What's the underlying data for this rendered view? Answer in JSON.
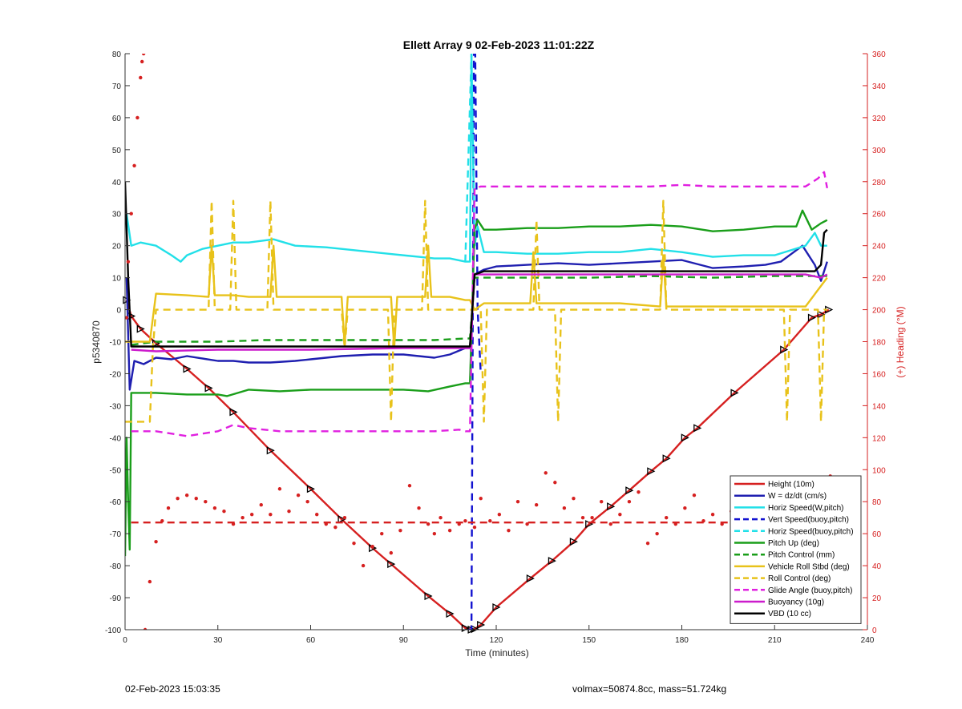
{
  "chart_data": {
    "type": "line",
    "title": "Ellett Array 9 02-Feb-2023 11:01:22Z",
    "xlabel": "Time (minutes)",
    "ylabel": "p5340870",
    "y2label": "(+) Heading (°M)",
    "xlim": [
      0,
      240
    ],
    "ylim": [
      -100,
      80
    ],
    "y2lim": [
      0,
      360
    ],
    "xticks": [
      0,
      30,
      60,
      90,
      120,
      150,
      180,
      210,
      240
    ],
    "yticks": [
      -100,
      -90,
      -80,
      -70,
      -60,
      -50,
      -40,
      -30,
      -20,
      -10,
      0,
      10,
      20,
      30,
      40,
      50,
      60,
      70,
      80
    ],
    "y2ticks": [
      0,
      20,
      40,
      60,
      80,
      100,
      120,
      140,
      160,
      180,
      200,
      220,
      240,
      260,
      280,
      300,
      320,
      340,
      360
    ],
    "grid": false,
    "legend_position": "bottom-right",
    "series": [
      {
        "name": "Height (10m)",
        "color": "#d62020",
        "style": "solid",
        "x": [
          0.5,
          2,
          5,
          10,
          20,
          27,
          35,
          47,
          60,
          70,
          80,
          86,
          98,
          105,
          110,
          112,
          113,
          115,
          120,
          131,
          138,
          145,
          150,
          157,
          163,
          170,
          175,
          181,
          185,
          197,
          213,
          222,
          225,
          227.5
        ],
        "y": [
          3,
          -2,
          -6,
          -10.5,
          -18.5,
          -24.5,
          -32,
          -44,
          -56,
          -65.5,
          -74.5,
          -79.5,
          -89.5,
          -95,
          -99.5,
          -100,
          -99.8,
          -98.5,
          -93,
          -84,
          -78.5,
          -72.5,
          -67,
          -61.5,
          -56.5,
          -50.5,
          -46.5,
          -40,
          -37,
          -26,
          -12.5,
          -2.5,
          -1.5,
          0
        ]
      },
      {
        "name": "W = dz/dt (cm/s)",
        "color": "#1f1fb0",
        "style": "solid",
        "x": [
          0.5,
          1.5,
          3,
          6,
          10,
          15,
          20,
          30,
          35,
          40,
          47,
          55,
          60,
          70,
          80,
          90,
          95,
          100,
          105,
          110,
          111.5,
          113,
          116,
          120,
          130,
          140,
          150,
          160,
          170,
          180,
          190,
          200,
          207,
          212,
          219,
          223,
          225,
          227
        ],
        "y": [
          10,
          -25,
          -16,
          -17,
          -15,
          -15.5,
          -14.5,
          -16,
          -16,
          -16.5,
          -16.5,
          -16,
          -15.5,
          -14.5,
          -14,
          -14,
          -14.5,
          -15,
          -14,
          -12,
          -12,
          11,
          12.5,
          13.5,
          14,
          14.5,
          14,
          14.5,
          15,
          15.5,
          13,
          13.5,
          14,
          15,
          20,
          14,
          9,
          15
        ]
      },
      {
        "name": "Horiz Speed(W,pitch)",
        "color": "#22e0e8",
        "style": "solid",
        "x": [
          0.5,
          2,
          5,
          10,
          15,
          18,
          20,
          25,
          30,
          35,
          40,
          48,
          55,
          65,
          75,
          85,
          95,
          100,
          105,
          110,
          111.5,
          112,
          113,
          114,
          116,
          120,
          130,
          140,
          150,
          160,
          170,
          180,
          190,
          200,
          210,
          220,
          223,
          225,
          227
        ],
        "y": [
          30,
          20,
          21,
          20,
          17,
          15,
          17,
          19,
          20,
          21,
          21,
          22,
          20,
          19.5,
          18.5,
          17.5,
          16.5,
          16,
          16,
          15,
          15,
          80,
          20,
          26,
          18,
          18,
          17.5,
          17.5,
          18,
          18,
          19,
          18,
          16.5,
          17,
          17,
          20,
          24,
          20,
          20
        ]
      },
      {
        "name": "Vert Speed(buoy,pitch)",
        "color": "#1212d0",
        "style": "dashed",
        "x": [
          111,
          112,
          112.8,
          113.2,
          114,
          115
        ],
        "y": [
          -100,
          -100,
          80,
          80,
          0,
          -20
        ]
      },
      {
        "name": "Horiz Speed(buoy,pitch)",
        "color": "#22e0e8",
        "style": "dashed",
        "x": [
          110,
          112,
          113
        ],
        "y": [
          15,
          80,
          20
        ]
      },
      {
        "name": "Pitch Up (deg)",
        "color": "#1a9e1a",
        "style": "solid",
        "x": [
          0,
          0.5,
          1,
          1.5,
          2,
          5,
          10,
          20,
          30,
          33,
          40,
          50,
          60,
          70,
          80,
          90,
          98,
          105,
          110,
          111.5,
          113,
          114,
          116,
          120,
          130,
          140,
          150,
          160,
          170,
          180,
          190,
          200,
          210,
          217,
          219,
          222,
          225,
          227
        ],
        "y": [
          -77,
          -40,
          -60,
          -75,
          -26,
          -26,
          -26,
          -26.5,
          -26.5,
          -27,
          -25,
          -25.5,
          -25,
          -25,
          -25,
          -25,
          -25.5,
          -24,
          -23,
          -23,
          25,
          28,
          25,
          25,
          25.5,
          25.5,
          26,
          26,
          26.5,
          26,
          24.5,
          25,
          26,
          26,
          31,
          25,
          27,
          28
        ]
      },
      {
        "name": "Pitch Control (mm)",
        "color": "#1a9e1a",
        "style": "dashed",
        "x": [
          2,
          10,
          30,
          45,
          60,
          80,
          100,
          110,
          111.5,
          113,
          116,
          130,
          150,
          170,
          190,
          210,
          227
        ],
        "y": [
          -11,
          -10,
          -10,
          -9.5,
          -9.5,
          -9.5,
          -9.5,
          -9,
          -9,
          10,
          10,
          10,
          10,
          10.5,
          10,
          10.5,
          10.5
        ]
      },
      {
        "name": "Vehicle Roll Stbd (deg)",
        "color": "#e8c21a",
        "style": "solid",
        "x": [
          0,
          2,
          5,
          8,
          10,
          20,
          27,
          28,
          29,
          35,
          40,
          47,
          48,
          49,
          60,
          70,
          71,
          72,
          80,
          86,
          87,
          88,
          97,
          98,
          99,
          105,
          110,
          111.5,
          113,
          116,
          120,
          131,
          132,
          133,
          140,
          150,
          160,
          173,
          174,
          175,
          180,
          190,
          200,
          220,
          227
        ],
        "y": [
          -10,
          -10,
          -10,
          -10,
          5,
          4.5,
          4,
          20,
          4.5,
          4.5,
          4,
          4,
          20,
          4,
          4,
          4,
          -11,
          4,
          4,
          4,
          -12,
          4,
          4,
          20,
          4,
          4,
          3,
          3,
          0,
          2,
          2,
          2,
          18,
          2,
          2,
          2,
          2,
          1,
          17,
          1,
          1,
          1,
          1,
          1,
          10
        ]
      },
      {
        "name": "Roll Control (deg)",
        "color": "#e8c21a",
        "style": "dashed",
        "x": [
          0,
          2,
          7,
          8,
          9,
          10,
          20,
          27,
          28,
          29,
          34,
          35,
          36,
          46,
          47,
          48,
          60,
          70,
          71,
          72,
          85,
          86,
          87,
          96,
          97,
          98,
          110,
          111.5,
          113,
          115,
          116,
          117,
          120,
          132,
          133,
          134,
          139,
          140,
          141,
          173,
          174,
          175,
          190,
          210,
          213,
          214,
          215,
          224,
          225,
          226,
          227
        ],
        "y": [
          -35,
          -35,
          -35,
          -35,
          -12,
          0,
          0,
          0,
          34,
          0,
          0,
          34,
          0,
          0,
          34,
          0,
          0,
          0,
          -12,
          0,
          0,
          -35,
          0,
          0,
          34,
          0,
          0,
          0,
          0,
          0,
          -35,
          0,
          0,
          0,
          28,
          0,
          0,
          -35,
          0,
          0,
          34,
          0,
          0,
          0,
          0,
          -35,
          0,
          0,
          -35,
          0,
          0
        ]
      },
      {
        "name": "Glide Angle (buoy,pitch)",
        "color": "#e020e0",
        "style": "dashed",
        "x": [
          2,
          10,
          20,
          30,
          35,
          40,
          50,
          60,
          70,
          80,
          90,
          100,
          108,
          110,
          111.5,
          113,
          115,
          120,
          140,
          160,
          170,
          180,
          190,
          200,
          210,
          220,
          224,
          226,
          227
        ],
        "y": [
          -38,
          -38,
          -39.5,
          -38,
          -36,
          -37,
          -38,
          -38,
          -38,
          -38,
          -38,
          -38,
          -37.5,
          -38,
          -38,
          38,
          38.5,
          38.5,
          38.5,
          38.5,
          38.5,
          39,
          38.5,
          38.5,
          38.5,
          38.5,
          41,
          43,
          38
        ]
      },
      {
        "name": "Buoyancy (10g)",
        "color": "#cc1ccc",
        "style": "solid",
        "x": [
          2,
          10,
          30,
          60,
          90,
          110,
          111.5,
          113,
          116,
          130,
          160,
          190,
          220,
          225,
          227
        ],
        "y": [
          -12.5,
          -13,
          -12.5,
          -12.5,
          -12,
          -12,
          -12,
          11,
          11,
          11,
          11,
          11,
          11,
          10,
          11
        ]
      },
      {
        "name": "VBD (10 cc)",
        "color": "#000000",
        "style": "solid",
        "x": [
          0,
          1,
          2,
          5,
          10,
          30,
          60,
          90,
          110,
          111.5,
          113,
          116,
          120,
          150,
          180,
          210,
          223,
          225,
          226,
          227
        ],
        "y": [
          40,
          10,
          -11.5,
          -11.5,
          -11.5,
          -11.5,
          -11.5,
          -11.5,
          -11.5,
          -11.5,
          11,
          12,
          12,
          12,
          12,
          12,
          12,
          14,
          24,
          25
        ]
      },
      {
        "name": "Heading (°M)",
        "color": "#d62020",
        "style": "dots",
        "axis": "right",
        "x": [
          0.5,
          1,
          2,
          3,
          4,
          5,
          5.5,
          6,
          6.5,
          8,
          10,
          12,
          14,
          17,
          20,
          23,
          26,
          29,
          32,
          35,
          38,
          41,
          44,
          47,
          50,
          53,
          56,
          59,
          62,
          65,
          68,
          71,
          74,
          77,
          80,
          83,
          86,
          89,
          92,
          95,
          98,
          100,
          102,
          105,
          108,
          110,
          113,
          115,
          118,
          121,
          124,
          127,
          130,
          133,
          136,
          139,
          142,
          145,
          148,
          151,
          154,
          157,
          160,
          163,
          166,
          169,
          172,
          175,
          178,
          181,
          184,
          187,
          190,
          193,
          196,
          199,
          202,
          205,
          208,
          211,
          214,
          217,
          220,
          223,
          226,
          228
        ],
        "y": [
          195,
          230,
          260,
          290,
          320,
          345,
          355,
          360,
          0,
          30,
          55,
          68,
          76,
          82,
          84,
          82,
          80,
          76,
          74,
          66,
          70,
          72,
          78,
          72,
          88,
          74,
          84,
          80,
          72,
          66,
          64,
          70,
          54,
          40,
          52,
          60,
          48,
          62,
          90,
          76,
          66,
          60,
          70,
          62,
          66,
          68,
          64,
          82,
          68,
          72,
          62,
          80,
          66,
          78,
          98,
          92,
          76,
          82,
          70,
          70,
          80,
          66,
          72,
          80,
          86,
          54,
          60,
          70,
          66,
          76,
          84,
          68,
          72,
          66,
          74,
          62,
          64,
          70,
          78,
          76,
          80,
          60,
          68,
          62,
          74,
          96
        ]
      },
      {
        "name": "Mean Heading",
        "color": "#d62020",
        "style": "dashed",
        "axis": "right",
        "x": [
          2,
          227
        ],
        "y": [
          67,
          67
        ]
      }
    ]
  },
  "legend_items": [
    {
      "label": "Height (10m)",
      "color": "#d62020",
      "style": "solid"
    },
    {
      "label": "W = dz/dt (cm/s)",
      "color": "#1f1fb0",
      "style": "solid"
    },
    {
      "label": "Horiz Speed(W,pitch)",
      "color": "#22e0e8",
      "style": "solid"
    },
    {
      "label": "Vert Speed(buoy,pitch)",
      "color": "#1212d0",
      "style": "dashed"
    },
    {
      "label": "Horiz Speed(buoy,pitch)",
      "color": "#22e0e8",
      "style": "dashed"
    },
    {
      "label": "Pitch Up (deg)",
      "color": "#1a9e1a",
      "style": "solid"
    },
    {
      "label": "Pitch Control (mm)",
      "color": "#1a9e1a",
      "style": "dashed"
    },
    {
      "label": "Vehicle Roll Stbd (deg)",
      "color": "#e8c21a",
      "style": "solid"
    },
    {
      "label": "Roll Control (deg)",
      "color": "#e8c21a",
      "style": "dashed"
    },
    {
      "label": "Glide Angle (buoy,pitch)",
      "color": "#e020e0",
      "style": "dashed"
    },
    {
      "label": "Buoyancy (10g)",
      "color": "#cc1ccc",
      "style": "solid"
    },
    {
      "label": "VBD (10 cc)",
      "color": "#000000",
      "style": "solid"
    }
  ],
  "footer": {
    "left": "02-Feb-2023 15:03:35",
    "right": "volmax=50874.8cc, mass=51.724kg"
  }
}
